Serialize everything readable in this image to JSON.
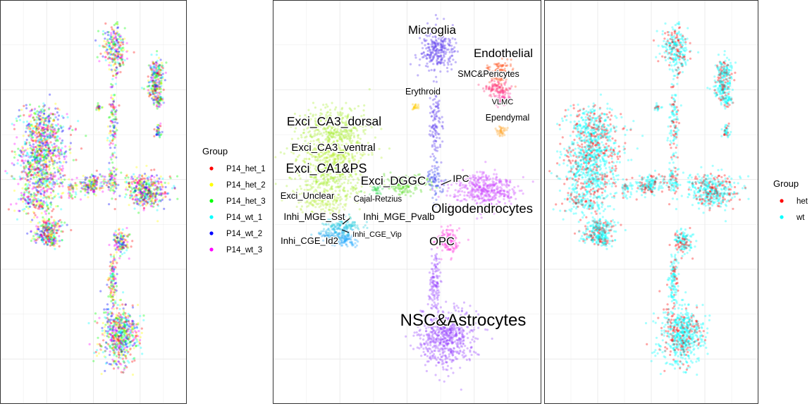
{
  "figure": {
    "legend_left": {
      "title": "Group",
      "items": [
        {
          "label": "P14_het_1",
          "color": "#FF0000"
        },
        {
          "label": "P14_het_2",
          "color": "#FFFF00"
        },
        {
          "label": "P14_het_3",
          "color": "#00FF00"
        },
        {
          "label": "P14_wt_1",
          "color": "#00FFFF"
        },
        {
          "label": "P14_wt_2",
          "color": "#0000FF"
        },
        {
          "label": "P14_wt_3",
          "color": "#FF00FF"
        }
      ]
    },
    "legend_right": {
      "title": "Group",
      "items": [
        {
          "label": "het",
          "color": "#FF0000"
        },
        {
          "label": "wt",
          "color": "#00FFFF"
        }
      ]
    }
  },
  "chart_data": [
    {
      "type": "scatter",
      "panel": "sample",
      "color_by": "Group",
      "series": [
        {
          "name": "P14_het_1",
          "color": "#FF0000"
        },
        {
          "name": "P14_het_2",
          "color": "#FFFF00"
        },
        {
          "name": "P14_het_3",
          "color": "#00FF00"
        },
        {
          "name": "P14_wt_1",
          "color": "#00FFFF"
        },
        {
          "name": "P14_wt_2",
          "color": "#0000FF"
        },
        {
          "name": "P14_wt_3",
          "color": "#FF00FF"
        }
      ],
      "axis_ticks_shown": false,
      "grid": true,
      "legend_position": "right"
    },
    {
      "type": "scatter",
      "panel": "cell-type",
      "color_by": "cell type",
      "legend_position": "none",
      "grid": true,
      "labels": [
        "Microglia",
        "Endothelial",
        "SMC&Pericytes",
        "Erythroid",
        "VLMC",
        "Ependymal",
        "Exci_CA3_dorsal",
        "Exci_CA3_ventral",
        "Exci_CA1&PS",
        "Exci_DGGC",
        "IPC",
        "Exci_Unclear",
        "Cajal-Retzius",
        "Oligodendrocytes",
        "Inhi_MGE_Sst",
        "Inhi_MGE_Pvalb",
        "Inhi_CGE_Id2",
        "Inhi_CGE_Vip",
        "OPC",
        "NSC&Astrocytes"
      ],
      "clusters": [
        {
          "name": "Microglia",
          "color": "#5533EE"
        },
        {
          "name": "Endothelial",
          "color": "#FF5522"
        },
        {
          "name": "SMC&Pericytes",
          "color": "#FF3377"
        },
        {
          "name": "Erythroid",
          "color": "#FFCC00"
        },
        {
          "name": "VLMC",
          "color": "#FF44AA"
        },
        {
          "name": "Ependymal",
          "color": "#FFAA33"
        },
        {
          "name": "Exci_CA3_dorsal",
          "color": "#AAEE33"
        },
        {
          "name": "Exci_CA3_ventral",
          "color": "#BBEE33"
        },
        {
          "name": "Exci_CA1&PS",
          "color": "#AAEE33"
        },
        {
          "name": "Exci_DGGC",
          "color": "#55DD22"
        },
        {
          "name": "IPC",
          "color": "#3344EE"
        },
        {
          "name": "Exci_Unclear",
          "color": "#BBEE44"
        },
        {
          "name": "Cajal-Retzius",
          "color": "#44DD66"
        },
        {
          "name": "Oligodendrocytes",
          "color": "#CC44FF"
        },
        {
          "name": "Inhi_MGE_Sst",
          "color": "#22CCDD"
        },
        {
          "name": "Inhi_MGE_Pvalb",
          "color": "#22BBEE"
        },
        {
          "name": "Inhi_CGE_Id2",
          "color": "#33AAEE"
        },
        {
          "name": "Inhi_CGE_Vip",
          "color": "#22AAFF"
        },
        {
          "name": "OPC",
          "color": "#FF33DD"
        },
        {
          "name": "NSC&Astrocytes",
          "color": "#9944FF"
        }
      ]
    },
    {
      "type": "scatter",
      "panel": "genotype",
      "color_by": "Group",
      "series": [
        {
          "name": "het",
          "color": "#FF0000"
        },
        {
          "name": "wt",
          "color": "#00FFFF"
        }
      ],
      "grid": true,
      "legend_position": "right"
    }
  ]
}
